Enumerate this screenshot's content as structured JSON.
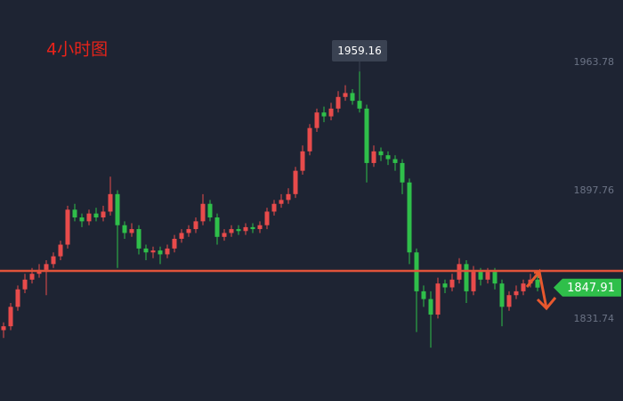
{
  "chart_data": {
    "type": "candlestick",
    "title": "4小时图",
    "open": [
      1826,
      1828,
      1838,
      1847,
      1852,
      1855,
      1857,
      1860,
      1864,
      1870,
      1888,
      1884,
      1882,
      1886,
      1884,
      1887,
      1896,
      1880,
      1876,
      1878,
      1868,
      1866,
      1867,
      1865,
      1868,
      1873,
      1876,
      1878,
      1882,
      1891,
      1884,
      1874,
      1876,
      1878,
      1877,
      1879,
      1878,
      1880,
      1887,
      1891,
      1893,
      1896,
      1908,
      1918,
      1930,
      1938,
      1936,
      1940,
      1946,
      1948,
      1944,
      1940,
      1912,
      1918,
      1916,
      1914,
      1912,
      1902,
      1866,
      1846,
      1842,
      1834,
      1850,
      1848,
      1852,
      1860,
      1846,
      1856,
      1852,
      1856,
      1850,
      1838,
      1844,
      1846,
      1850,
      1852
    ],
    "high": [
      1830,
      1840,
      1849,
      1855,
      1858,
      1860,
      1862,
      1866,
      1872,
      1890,
      1891,
      1886,
      1888,
      1889,
      1890,
      1905,
      1898,
      1882,
      1881,
      1880,
      1870,
      1869,
      1869,
      1870,
      1875,
      1878,
      1880,
      1884,
      1896,
      1893,
      1886,
      1878,
      1880,
      1880,
      1881,
      1881,
      1882,
      1889,
      1893,
      1896,
      1899,
      1910,
      1921,
      1932,
      1940,
      1941,
      1943,
      1949,
      1952,
      1950,
      1959.16,
      1942,
      1921,
      1920,
      1918,
      1916,
      1914,
      1904,
      1868,
      1849,
      1846,
      1853,
      1852,
      1855,
      1863,
      1862,
      1859,
      1858,
      1858,
      1858,
      1852,
      1846,
      1849,
      1852,
      1855,
      1855
    ],
    "low": [
      1822,
      1826,
      1836,
      1845,
      1850,
      1853,
      1844,
      1858,
      1862,
      1868,
      1882,
      1879,
      1880,
      1882,
      1882,
      1885,
      1858,
      1873,
      1874,
      1865,
      1862,
      1863,
      1860,
      1863,
      1866,
      1871,
      1874,
      1876,
      1880,
      1882,
      1870,
      1872,
      1874,
      1875,
      1875,
      1876,
      1876,
      1878,
      1885,
      1889,
      1891,
      1894,
      1906,
      1916,
      1928,
      1933,
      1934,
      1938,
      1944,
      1942,
      1938,
      1902,
      1910,
      1913,
      1911,
      1908,
      1896,
      1860,
      1825,
      1838,
      1817,
      1832,
      1845,
      1846,
      1850,
      1840,
      1844,
      1849,
      1850,
      1847,
      1828,
      1836,
      1842,
      1844,
      1848,
      1846
    ],
    "close": [
      1828,
      1838,
      1847,
      1852,
      1855,
      1857,
      1860,
      1864,
      1870,
      1888,
      1884,
      1882,
      1886,
      1884,
      1887,
      1896,
      1880,
      1876,
      1878,
      1868,
      1866,
      1867,
      1865,
      1868,
      1873,
      1876,
      1878,
      1882,
      1891,
      1884,
      1874,
      1876,
      1878,
      1877,
      1879,
      1878,
      1880,
      1887,
      1891,
      1893,
      1896,
      1908,
      1918,
      1930,
      1938,
      1936,
      1940,
      1946,
      1948,
      1944,
      1940,
      1912,
      1918,
      1916,
      1914,
      1912,
      1902,
      1866,
      1846,
      1842,
      1834,
      1850,
      1848,
      1852,
      1860,
      1846,
      1856,
      1852,
      1856,
      1850,
      1838,
      1844,
      1846,
      1850,
      1852,
      1847.91
    ],
    "up_color": "#e84b4b",
    "down_color": "#2fbf4a",
    "ylim": [
      1789.55,
      1995.87
    ],
    "yticks": [
      1831.74,
      1897.76,
      1963.78
    ],
    "grid": false,
    "reference_line": 1856.5,
    "last_price": 1847.91
  }
}
